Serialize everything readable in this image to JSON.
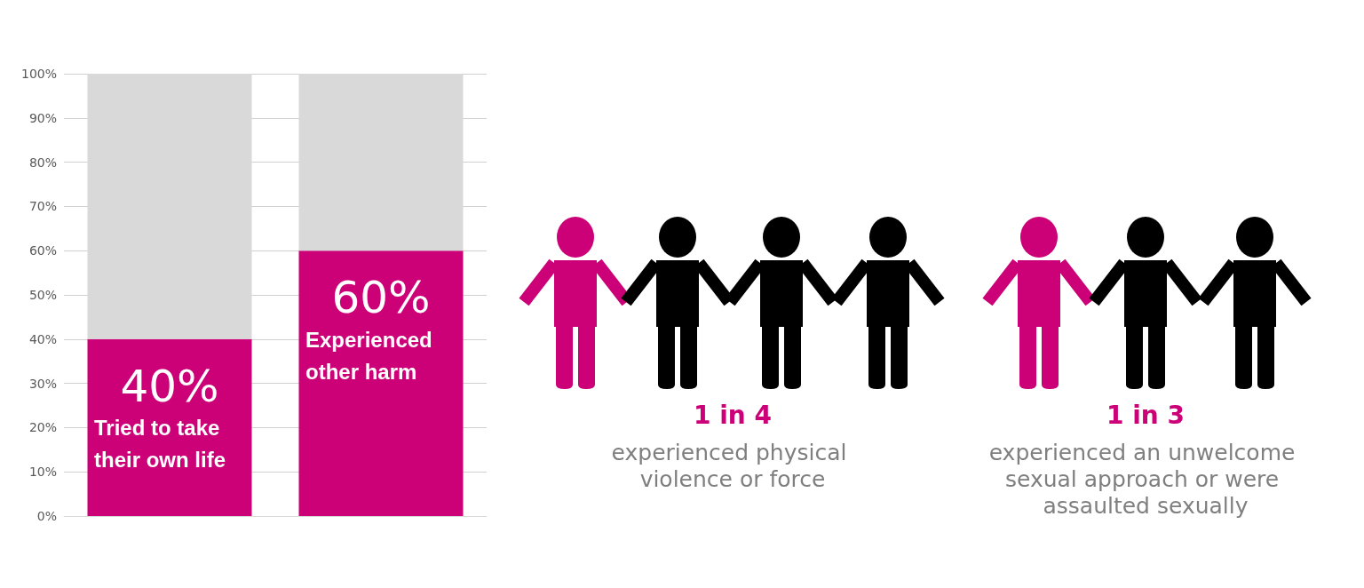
{
  "chart_data": {
    "type": "bar",
    "stacked": true,
    "categories": [
      null,
      null
    ],
    "series": [
      {
        "color": "#cc0077",
        "values": [
          40,
          60
        ],
        "value_labels": [
          "40%",
          "60%"
        ]
      },
      {
        "color": "#d9d9d9",
        "values": [
          60,
          40
        ]
      }
    ],
    "ylim": [
      0,
      100
    ],
    "yticks": [
      {
        "value": 0,
        "label": "0%"
      },
      {
        "value": 10,
        "label": "10%"
      },
      {
        "value": 20,
        "label": "20%"
      },
      {
        "value": 30,
        "label": "30%"
      },
      {
        "value": 40,
        "label": "40%"
      },
      {
        "value": 50,
        "label": "50%"
      },
      {
        "value": 60,
        "label": "60%"
      },
      {
        "value": 70,
        "label": "70%"
      },
      {
        "value": 80,
        "label": "80%"
      },
      {
        "value": 90,
        "label": "90%"
      },
      {
        "value": 100,
        "label": "100%"
      }
    ],
    "grid": "y",
    "annotations": [
      "Tried to take their own life",
      "Experienced other harm",
      "1 in 4",
      "experienced physical violence or force",
      "1 in 3",
      "experienced an unwelcome sexual approach or were assaulted sexually"
    ]
  }
}
